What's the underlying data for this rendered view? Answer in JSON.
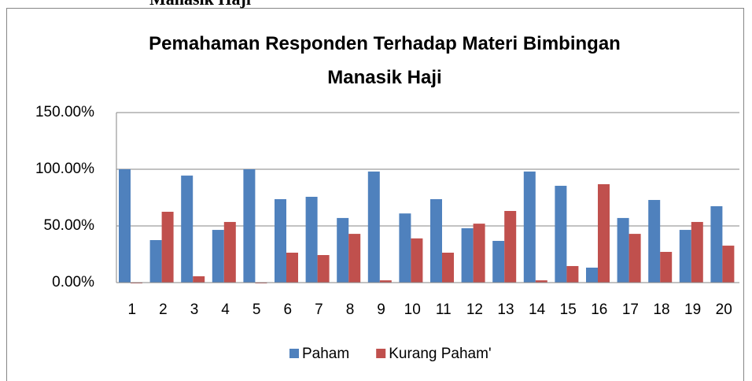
{
  "chart_data": {
    "type": "bar",
    "caption_fragment": "Manasik Haji",
    "title": "Pemahaman Responden Terhadap Materi Bimbingan Manasik Haji",
    "categories": [
      "1",
      "2",
      "3",
      "4",
      "5",
      "6",
      "7",
      "8",
      "9",
      "10",
      "11",
      "12",
      "13",
      "14",
      "15",
      "16",
      "17",
      "18",
      "19",
      "20"
    ],
    "series": [
      {
        "name": "Paham",
        "color": "#4f81bd",
        "values": [
          100,
          37.5,
          94.4,
          46.5,
          100,
          73.6,
          75.7,
          57,
          98,
          61,
          73.6,
          48,
          36.8,
          98,
          85.4,
          13.2,
          57,
          72.9,
          46.5,
          67.4
        ]
      },
      {
        "name": "Kurang Paham'",
        "color": "#c0504d",
        "values": [
          0,
          62.5,
          5.6,
          53.5,
          0,
          26.4,
          24.3,
          43,
          2,
          39,
          26.4,
          52,
          63.2,
          2,
          14.6,
          86.8,
          43,
          27.1,
          53.5,
          32.6
        ]
      }
    ],
    "ylim": [
      0,
      150
    ],
    "yticks": [
      {
        "value": 0,
        "label": "0.00%"
      },
      {
        "value": 50,
        "label": "50.00%"
      },
      {
        "value": 100,
        "label": "100.00%"
      },
      {
        "value": 150,
        "label": "150.00%"
      }
    ],
    "grid": true,
    "legend": "bottom"
  }
}
